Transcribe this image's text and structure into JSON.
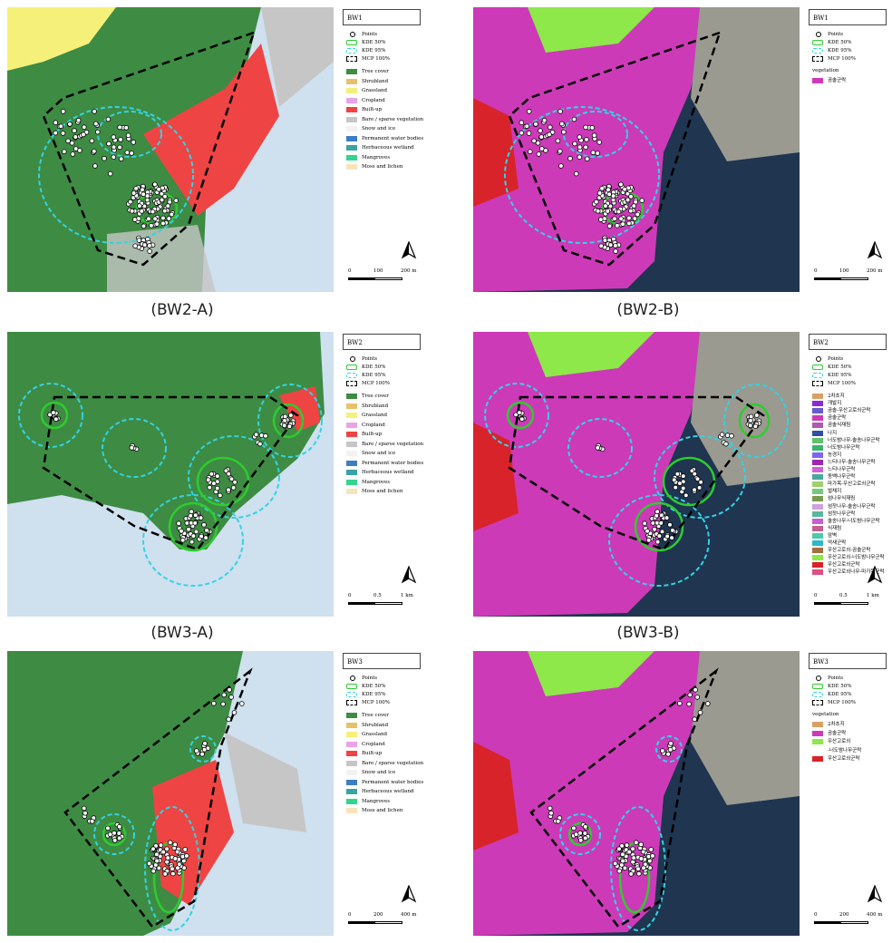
{
  "captions": [
    "(BW2-A)",
    "(BW2-B)",
    "(BW3-A)",
    "(BW3-B)"
  ],
  "landcover_legend": [
    {
      "label": "Tree cover",
      "color": "#3e8b43"
    },
    {
      "label": "Shrubland",
      "color": "#e8c06a"
    },
    {
      "label": "Grassland",
      "color": "#f5f07a"
    },
    {
      "label": "Cropland",
      "color": "#eaa3e6"
    },
    {
      "label": "Built-up",
      "color": "#ee4444"
    },
    {
      "label": "Bare / sparse vegetation",
      "color": "#c6c6c6"
    },
    {
      "label": "Snow and ice",
      "color": "#f2f2f2"
    },
    {
      "label": "Permanent water bodies",
      "color": "#3d7ec2"
    },
    {
      "label": "Herbaceous wetland",
      "color": "#3aa3a3"
    },
    {
      "label": "Mangroves",
      "color": "#33d48f"
    },
    {
      "label": "Moss and lichen",
      "color": "#f5e5bb"
    }
  ],
  "method_legend": {
    "points": "Points",
    "kde50": "KDE 50%",
    "kde95": "KDE 95%",
    "mcp": "MCP 100%"
  },
  "colors": {
    "kde50": "#2ecc2e",
    "kde95": "#33d3e3",
    "mcp": "#000000",
    "sea": "#cfe0ef",
    "sat_sea": "#1f3550",
    "veg_pink": "#cc3ab8",
    "veg_lime": "#8ee84a",
    "veg_red": "#d8232a"
  },
  "panels": [
    {
      "title": "BW1",
      "type": "landcover",
      "scale": [
        "0",
        "100",
        "200 m"
      ]
    },
    {
      "title": "BW1",
      "type": "vegetation",
      "veg_heading": "vegetation",
      "veg_items": [
        {
          "label": "곰솔군락",
          "color": "#cc3ab8"
        }
      ],
      "scale": [
        "0",
        "100",
        "200 m"
      ]
    },
    {
      "title": "BW2",
      "type": "landcover",
      "scale": [
        "0",
        "0.5",
        "1 km"
      ]
    },
    {
      "title": "BW2",
      "type": "vegetation",
      "veg_heading": "",
      "veg_items": [
        {
          "label": "2차초지",
          "color": "#d9a066"
        },
        {
          "label": "개발지",
          "color": "#8a2bd6"
        },
        {
          "label": "곰솔-우산고로쇠군락",
          "color": "#6a5acd"
        },
        {
          "label": "곰솔군락",
          "color": "#cc3ab8"
        },
        {
          "label": "곰솔식재림",
          "color": "#b05ab0"
        },
        {
          "label": "나지",
          "color": "#2f4fa8"
        },
        {
          "label": "너도밤나무-솔송나무군락",
          "color": "#5fc26a"
        },
        {
          "label": "너도밤나무군락",
          "color": "#3cb371"
        },
        {
          "label": "농경지",
          "color": "#7b68ee"
        },
        {
          "label": "느티나무-솔송나무군락",
          "color": "#9c27b0"
        },
        {
          "label": "느티나무군락",
          "color": "#d060d8"
        },
        {
          "label": "동백나무군락",
          "color": "#4aa8a0"
        },
        {
          "label": "마가목-우산고로쇠군락",
          "color": "#a0d070"
        },
        {
          "label": "벌채지",
          "color": "#77c77f"
        },
        {
          "label": "섬나무식재림",
          "color": "#7a9a50"
        },
        {
          "label": "섬잣나무-솔송나무군락",
          "color": "#d0a0e0"
        },
        {
          "label": "섬잣나무군락",
          "color": "#58b89a"
        },
        {
          "label": "솔송나무-너도밤나무군락",
          "color": "#c75ed0"
        },
        {
          "label": "식재림",
          "color": "#c06090"
        },
        {
          "label": "암벽",
          "color": "#4ec9b0"
        },
        {
          "label": "억새군락",
          "color": "#2bb8c8"
        },
        {
          "label": "우산고로쇠-곰솔군락",
          "color": "#a07040"
        },
        {
          "label": "우산고로쇠-너도밤나무군락",
          "color": "#8ee84a"
        },
        {
          "label": "우산고로쇠군락",
          "color": "#d8232a"
        },
        {
          "label": "우산고로쇠나무-마가목군락",
          "color": "#e05080"
        }
      ],
      "scale": [
        "0",
        "0.5",
        "1 km"
      ]
    },
    {
      "title": "BW3",
      "type": "landcover",
      "scale": [
        "0",
        "200",
        "400 m"
      ]
    },
    {
      "title": "BW3",
      "type": "vegetation",
      "veg_heading": "vegetation",
      "veg_items": [
        {
          "label": "2차초지",
          "color": "#d9a066"
        },
        {
          "label": "곰솔군락",
          "color": "#cc3ab8"
        },
        {
          "label": "우산고로쇠",
          "color": "#8ee84a"
        },
        {
          "label": "-너도밤나무군락",
          "color": ""
        },
        {
          "label": "우산고로쇠군락",
          "color": "#d8232a"
        }
      ],
      "scale": [
        "0",
        "200",
        "400 m"
      ]
    }
  ]
}
